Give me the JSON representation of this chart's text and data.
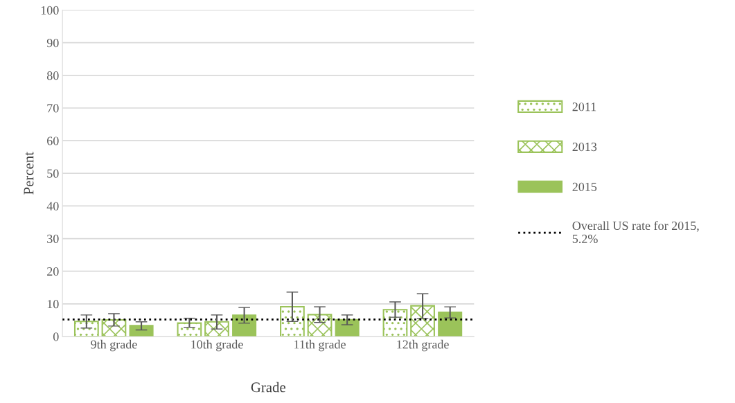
{
  "chart_data": {
    "type": "bar",
    "xlabel": "Grade",
    "ylabel": "Percent",
    "categories": [
      "9th grade",
      "10th grade",
      "11th grade",
      "12th grade"
    ],
    "series": [
      {
        "name": "2011",
        "color": "#9bc35a",
        "values": [
          4.6,
          4.1,
          9.1,
          8.2
        ],
        "errors": [
          [
            2.6,
            6.6
          ],
          [
            2.8,
            5.6
          ],
          [
            4.6,
            13.6
          ],
          [
            5.9,
            10.6
          ]
        ]
      },
      {
        "name": "2013",
        "color": "#9bc35a",
        "values": [
          5.1,
          4.5,
          6.7,
          9.4
        ],
        "errors": [
          [
            3.2,
            7.0
          ],
          [
            2.3,
            6.6
          ],
          [
            4.3,
            9.1
          ],
          [
            5.6,
            13.1
          ]
        ]
      },
      {
        "name": "2015",
        "color": "#9bc35a",
        "values": [
          3.4,
          6.6,
          5.2,
          7.5
        ],
        "errors": [
          [
            2.0,
            4.5
          ],
          [
            4.1,
            8.9
          ],
          [
            3.6,
            6.6
          ],
          [
            5.7,
            9.1
          ]
        ]
      }
    ],
    "ref_lines": [
      {
        "axis": "y",
        "value": 5.2,
        "label": "Overall US rate for 2015, 5.2%",
        "color": "#000000",
        "line_style": "dotted"
      }
    ],
    "ylim": [
      0,
      100
    ],
    "yticks": [
      0,
      10,
      20,
      30,
      40,
      50,
      60,
      70,
      80,
      90,
      100
    ],
    "grid": "y",
    "legend": "right"
  }
}
